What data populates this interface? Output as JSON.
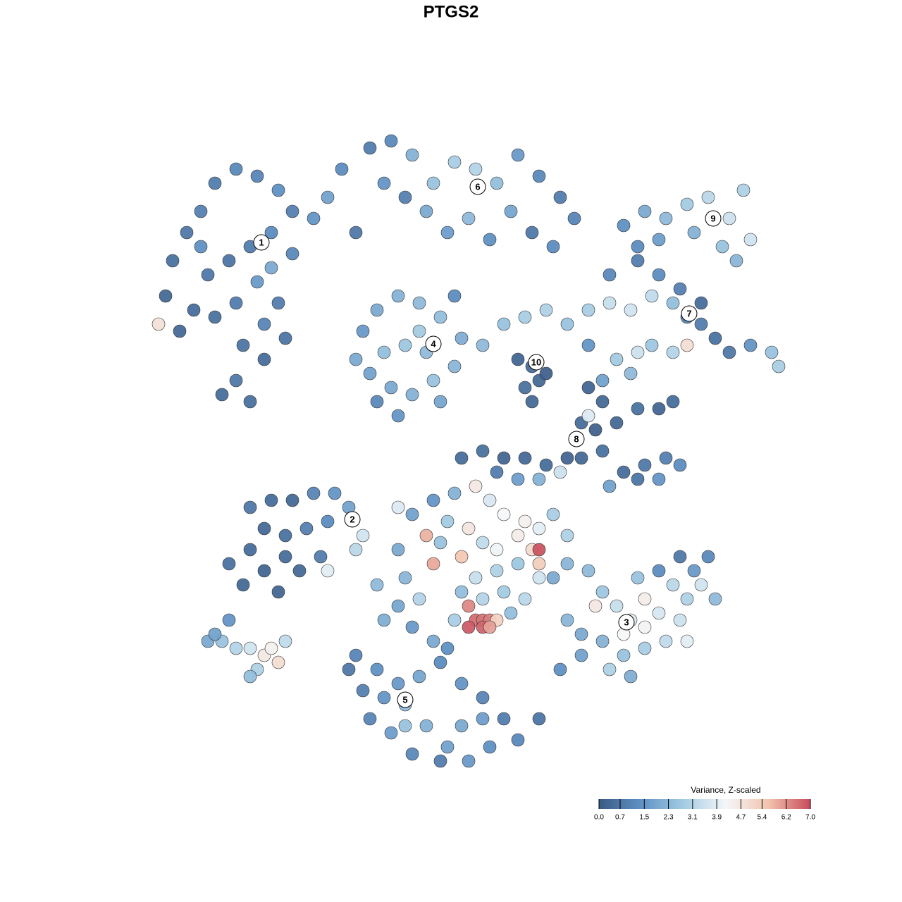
{
  "chart_data": {
    "type": "scatter",
    "title": "PTGS2",
    "xlim": [
      -48,
      48
    ],
    "ylim": [
      -48,
      48
    ],
    "colorbar": {
      "title": "Variance, Z-scaled",
      "clim": [
        0,
        7
      ],
      "colormap": [
        "#3b5a85",
        "#5f91c4",
        "#a3cbe3",
        "#f4f7f9",
        "#f2c4ae",
        "#c84b5c"
      ],
      "ticks": [
        {
          "value": 0,
          "label": "0.0"
        },
        0.7,
        1.5,
        2.3,
        3.1,
        3.9,
        4.7,
        5.4,
        6.2,
        {
          "value": 7,
          "label": "7.0"
        }
      ]
    },
    "series": [
      {
        "name": "cells",
        "x": [
          -43,
          -42,
          -40,
          -38,
          -36,
          -33,
          -30,
          -27,
          -25,
          -28,
          -31,
          -34,
          -37,
          -39,
          -41,
          -36,
          -33,
          -30,
          -28,
          -25,
          -32,
          -29,
          -33,
          -31,
          -35,
          -29,
          -27,
          -22,
          -20,
          -18,
          -44,
          -16,
          -38,
          -26,
          -14,
          -11,
          -8,
          -5,
          -2,
          1,
          4,
          7,
          10,
          13,
          15,
          -6,
          -3,
          0,
          3,
          -9,
          6,
          9,
          12,
          -12,
          22,
          25,
          28,
          31,
          34,
          37,
          39,
          40,
          36,
          32,
          27,
          24,
          38,
          -15,
          -13,
          -10,
          -7,
          -4,
          -1,
          -2,
          -5,
          -8,
          -11,
          -14,
          -12,
          -9,
          -6,
          -4,
          -10,
          -13,
          -16,
          -7,
          -2,
          2,
          5,
          8,
          11,
          14,
          17,
          20,
          23,
          26,
          29,
          31,
          33,
          35,
          37,
          40,
          43,
          44,
          21,
          24,
          26,
          29,
          31,
          23,
          19,
          17,
          20,
          24,
          27,
          30,
          33,
          7,
          9,
          10,
          8,
          11,
          9,
          17,
          19,
          16,
          18,
          21,
          24,
          27,
          29,
          16,
          19,
          22,
          25,
          28,
          30,
          24,
          27,
          14,
          11,
          8,
          5,
          2,
          -1,
          4,
          7,
          10,
          13,
          20,
          17,
          -31,
          -28,
          -25,
          -22,
          -19,
          -17,
          -20,
          -23,
          -26,
          -29,
          -31,
          -34,
          -32,
          -29,
          -26,
          -24,
          -27,
          -21,
          -16,
          -15,
          -10,
          -20,
          -8,
          -5,
          -2,
          1,
          3,
          5,
          -3,
          0,
          2,
          4,
          7,
          9,
          10,
          12,
          14,
          8,
          -6,
          -4,
          -1,
          1,
          4,
          7,
          10,
          10,
          -5,
          -1,
          2,
          5,
          -2,
          0,
          1,
          2,
          3,
          0,
          2,
          4,
          3,
          10,
          -10,
          -9,
          -7,
          -10,
          -13,
          -12,
          6,
          8,
          12,
          14,
          -8,
          -5,
          -3,
          17,
          19,
          21,
          23,
          25,
          27,
          29,
          31,
          32,
          34,
          33,
          30,
          28,
          25,
          22,
          19,
          16,
          14,
          16,
          13,
          30,
          27,
          24,
          35,
          22,
          31,
          25,
          23,
          20,
          18,
          -16,
          -13,
          -10,
          -7,
          -4,
          -1,
          2,
          5,
          7,
          3,
          0,
          -3,
          -6,
          -9,
          -12,
          -15,
          -17,
          -11,
          -8,
          -4,
          -1,
          2,
          -14,
          -9,
          10,
          -37,
          -35,
          -33,
          -31,
          -29,
          -28,
          -27,
          -30,
          -31,
          -26,
          -36,
          -34
        ],
        "y": [
          22,
          27,
          31,
          34,
          38,
          40,
          39,
          37,
          34,
          31,
          29,
          27,
          25,
          20,
          17,
          19,
          21,
          24,
          26,
          28,
          15,
          13,
          10,
          7,
          8,
          18,
          21,
          33,
          36,
          40,
          18,
          31,
          29,
          16,
          43,
          44,
          42,
          38,
          41,
          40,
          38,
          42,
          39,
          36,
          33,
          34,
          31,
          33,
          30,
          36,
          34,
          31,
          29,
          38,
          32,
          34,
          33,
          35,
          36,
          33,
          37,
          30,
          29,
          31,
          30,
          29,
          27,
          17,
          20,
          22,
          21,
          19,
          16,
          12,
          10,
          8,
          9,
          11,
          14,
          15,
          14,
          7,
          5,
          7,
          13,
          17,
          22,
          15,
          18,
          19,
          20,
          18,
          20,
          21,
          20,
          22,
          21,
          19,
          18,
          16,
          14,
          15,
          14,
          12,
          13,
          14,
          15,
          14,
          15,
          11,
          10,
          15,
          25,
          27,
          25,
          23,
          21,
          13,
          12,
          10,
          9,
          11,
          7,
          9,
          7,
          4,
          3,
          4,
          6,
          6,
          7,
          -1,
          0,
          -3,
          -2,
          -1,
          -2,
          -4,
          -4,
          -1,
          -2,
          -1,
          -1,
          0,
          -1,
          -3,
          -4,
          -4,
          -3,
          -5,
          5,
          -8,
          -7,
          -7,
          -6,
          -6,
          -8,
          -10,
          -11,
          -12,
          -11,
          -14,
          -16,
          -19,
          -17,
          -15,
          -17,
          -20,
          -15,
          -14,
          -12,
          -8,
          -17,
          -9,
          -7,
          -6,
          -5,
          -7,
          -9,
          -10,
          -11,
          -13,
          -14,
          -12,
          -14,
          -11,
          -9,
          -12,
          -10,
          -12,
          -13,
          -15,
          -18,
          -17,
          -16,
          -16,
          -18,
          -16,
          -20,
          -21,
          -20,
          -24,
          -22,
          -24,
          -24,
          -24,
          -25,
          -25,
          -24,
          -25,
          -14,
          -14,
          -18,
          -21,
          -22,
          -19,
          -24,
          -23,
          -21,
          -18,
          -16,
          -25,
          -27,
          -28,
          -17,
          -20,
          -22,
          -24,
          -21,
          -23,
          -19,
          -21,
          -17,
          -15,
          -19,
          -24,
          -27,
          -28,
          -29,
          -27,
          -26,
          -24,
          -29,
          -31,
          -15,
          -17,
          -18,
          -21,
          -26,
          -27,
          -25,
          -32,
          -31,
          -22,
          -29,
          -31,
          -33,
          -32,
          -30,
          -33,
          -35,
          -38,
          -41,
          -42,
          -44,
          -42,
          -39,
          -36,
          -35,
          -34,
          -31,
          -40,
          -43,
          -44,
          -39,
          -38,
          -38,
          -39,
          -38,
          -27,
          -27,
          -28,
          -28,
          -29,
          -28,
          -30,
          -31,
          -32,
          -27,
          -26,
          -24
        ],
        "values": [
          0.4,
          0.6,
          0.8,
          1.0,
          0.9,
          1.2,
          1.1,
          1.4,
          1.0,
          1.3,
          0.9,
          0.7,
          0.8,
          0.5,
          0.4,
          0.6,
          0.9,
          1.6,
          2.0,
          1.2,
          0.7,
          0.5,
          0.8,
          0.6,
          0.5,
          1.1,
          0.9,
          1.5,
          1.8,
          1.3,
          4.8,
          0.8,
          1.4,
          0.7,
          0.9,
          1.2,
          2.2,
          2.6,
          2.9,
          3.1,
          2.5,
          1.6,
          1.2,
          0.9,
          1.1,
          2.0,
          1.7,
          2.4,
          1.4,
          1.0,
          1.9,
          0.8,
          1.3,
          1.5,
          1.4,
          2.0,
          2.4,
          2.8,
          3.2,
          3.5,
          3.0,
          3.6,
          2.6,
          2.2,
          1.7,
          1.3,
          2.3,
          1.6,
          2.0,
          2.2,
          2.4,
          2.5,
          2.1,
          2.3,
          2.6,
          2.2,
          2.0,
          1.8,
          2.5,
          2.7,
          2.4,
          1.9,
          1.5,
          1.2,
          2.0,
          2.8,
          1.3,
          2.4,
          2.6,
          2.9,
          3.0,
          2.6,
          2.9,
          3.4,
          3.6,
          3.3,
          2.5,
          1.2,
          0.9,
          0.6,
          0.8,
          1.5,
          2.6,
          2.9,
          2.8,
          3.5,
          2.7,
          3.1,
          4.9,
          2.4,
          1.8,
          1.5,
          1.2,
          0.9,
          1.3,
          1.0,
          0.5,
          0.3,
          0.5,
          0.4,
          0.6,
          0.2,
          0.4,
          0.3,
          0.4,
          0.5,
          0.2,
          0.4,
          0.6,
          0.3,
          0.5,
          0.4,
          0.6,
          0.5,
          0.8,
          1.0,
          1.3,
          0.7,
          1.5,
          0.3,
          0.5,
          0.4,
          0.3,
          0.6,
          0.5,
          0.9,
          1.7,
          2.2,
          3.5,
          1.8,
          3.8,
          0.8,
          0.5,
          0.4,
          1.1,
          1.5,
          1.8,
          1.3,
          1.0,
          0.6,
          0.4,
          0.5,
          0.6,
          0.4,
          0.3,
          0.5,
          0.4,
          0.3,
          0.9,
          3.2,
          3.6,
          3.8,
          3.9,
          1.8,
          1.5,
          2.2,
          4.6,
          3.7,
          4.2,
          2.8,
          4.7,
          3.3,
          4.1,
          4.5,
          5.0,
          3.9,
          2.9,
          3.0,
          4.4,
          5.8,
          2.6,
          5.5,
          3.4,
          3.0,
          2.7,
          5.3,
          3.6,
          5.9,
          2.5,
          3.1,
          2.8,
          2.9,
          6.3,
          6.6,
          6.5,
          6.4,
          6.8,
          6.7,
          5.2,
          6.0,
          6.9,
          2.0,
          2.3,
          3.1,
          1.9,
          2.4,
          2.1,
          2.5,
          3.2,
          2.0,
          2.3,
          1.6,
          2.0,
          1.4,
          2.4,
          2.7,
          3.4,
          3.8,
          4.5,
          3.7,
          3.2,
          3.0,
          1.6,
          1.2,
          3.6,
          3.5,
          3.3,
          2.9,
          2.6,
          2.2,
          2.0,
          2.3,
          1.8,
          1.4,
          0.8,
          1.3,
          2.6,
          2.4,
          4.2,
          3.9,
          4.3,
          2.1,
          3.0,
          4.6,
          1.1,
          1.4,
          1.6,
          1.9,
          1.3,
          1.5,
          1.1,
          0.9,
          1.2,
          1.4,
          1.6,
          1.8,
          2.2,
          2.4,
          1.5,
          1.0,
          0.8,
          1.7,
          1.2,
          0.9,
          2.0,
          1.7,
          1.1,
          2.6,
          0.7,
          2.0,
          2.6,
          3.1,
          3.6,
          4.6,
          4.4,
          4.9,
          3.0,
          2.5,
          3.3,
          1.8,
          1.5
        ]
      }
    ],
    "clusters": [
      {
        "label": "1",
        "x": -29.4,
        "y": 29.6
      },
      {
        "label": "2",
        "x": -16.5,
        "y": -9.7
      },
      {
        "label": "3",
        "x": 22.4,
        "y": -24.3
      },
      {
        "label": "4",
        "x": -5,
        "y": 15.2
      },
      {
        "label": "5",
        "x": -9,
        "y": -35.3
      },
      {
        "label": "6",
        "x": 1.3,
        "y": 37.5
      },
      {
        "label": "7",
        "x": 31.3,
        "y": 19.5
      },
      {
        "label": "8",
        "x": 15.3,
        "y": 1.7
      },
      {
        "label": "9",
        "x": 34.7,
        "y": 33
      },
      {
        "label": "10",
        "x": 9.6,
        "y": 12.6
      }
    ]
  }
}
